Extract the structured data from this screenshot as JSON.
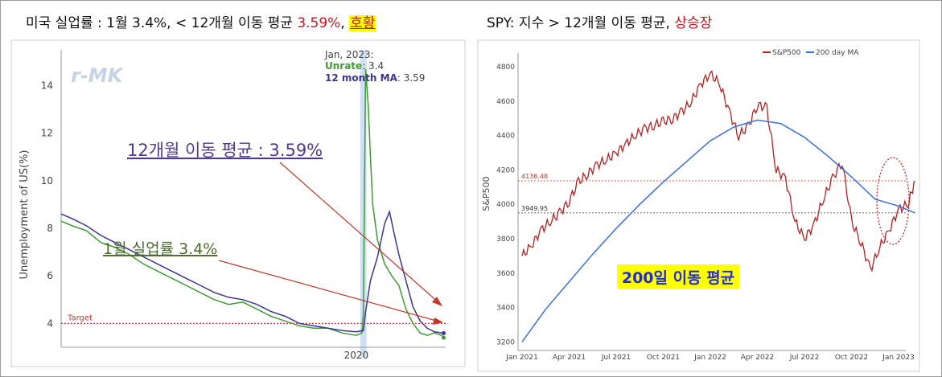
{
  "left": {
    "title": {
      "main": "미국 실업률 : 1월 3.4%, < 12개월 이동 평균 ",
      "value": "3.59%",
      "sep": ", ",
      "highlight": "호황"
    },
    "watermark": "r-MK",
    "tooltip": {
      "date": "Jan, 2023:",
      "unrate_label": "Unrate",
      "unrate_value": ": 3.4",
      "ma_label": "12 month MA",
      "ma_value": ": 3.59"
    },
    "annotation_ma": "12개월 이동 평균 : 3.59%",
    "annotation_unrate": "1월 실업률 3.4%",
    "target_label": "Target",
    "colors": {
      "unrate": "#3f9b35",
      "ma": "#3c3590",
      "target": "#e03030",
      "highlight_band": "#cfe0f4"
    },
    "chart_data": {
      "type": "line",
      "title": "",
      "xlabel": "",
      "ylabel": "Unemployment of US(%)",
      "xlim": [
        2009.6,
        2023.15
      ],
      "ylim": [
        3.0,
        15.5
      ],
      "yticks": [
        4,
        6,
        8,
        10,
        12,
        14
      ],
      "xticks": [
        {
          "value": 2020,
          "label": "2020"
        }
      ],
      "target": 4.0,
      "highlight": 2020.25,
      "series": [
        {
          "name": "Unrate",
          "points": [
            [
              2009.6,
              8.3
            ],
            [
              2010.0,
              8.1
            ],
            [
              2010.5,
              7.9
            ],
            [
              2011.0,
              7.4
            ],
            [
              2011.5,
              7.2
            ],
            [
              2012.0,
              6.9
            ],
            [
              2012.5,
              6.5
            ],
            [
              2013.0,
              6.2
            ],
            [
              2013.5,
              5.9
            ],
            [
              2014.0,
              5.6
            ],
            [
              2014.5,
              5.3
            ],
            [
              2015.0,
              5.0
            ],
            [
              2015.5,
              4.8
            ],
            [
              2016.0,
              4.9
            ],
            [
              2016.5,
              4.6
            ],
            [
              2017.0,
              4.3
            ],
            [
              2017.5,
              4.1
            ],
            [
              2018.0,
              3.9
            ],
            [
              2018.5,
              3.8
            ],
            [
              2019.0,
              3.8
            ],
            [
              2019.5,
              3.6
            ],
            [
              2020.0,
              3.5
            ],
            [
              2020.2,
              3.6
            ],
            [
              2020.25,
              4.4
            ],
            [
              2020.33,
              14.7
            ],
            [
              2020.42,
              13.2
            ],
            [
              2020.5,
              11.0
            ],
            [
              2020.58,
              9.0
            ],
            [
              2020.75,
              7.5
            ],
            [
              2021.0,
              6.5
            ],
            [
              2021.25,
              6.0
            ],
            [
              2021.5,
              5.6
            ],
            [
              2021.75,
              4.6
            ],
            [
              2022.0,
              4.0
            ],
            [
              2022.25,
              3.6
            ],
            [
              2022.5,
              3.5
            ],
            [
              2022.75,
              3.6
            ],
            [
              2023.0,
              3.5
            ],
            [
              2023.08,
              3.4
            ]
          ]
        },
        {
          "name": "12 month MA",
          "points": [
            [
              2009.6,
              8.6
            ],
            [
              2010.0,
              8.4
            ],
            [
              2010.5,
              8.1
            ],
            [
              2011.0,
              7.7
            ],
            [
              2011.5,
              7.4
            ],
            [
              2012.0,
              7.1
            ],
            [
              2012.5,
              6.8
            ],
            [
              2013.0,
              6.5
            ],
            [
              2013.5,
              6.2
            ],
            [
              2014.0,
              5.9
            ],
            [
              2014.5,
              5.6
            ],
            [
              2015.0,
              5.3
            ],
            [
              2015.5,
              5.1
            ],
            [
              2016.0,
              5.0
            ],
            [
              2016.5,
              4.8
            ],
            [
              2017.0,
              4.5
            ],
            [
              2017.5,
              4.3
            ],
            [
              2018.0,
              4.0
            ],
            [
              2018.5,
              3.9
            ],
            [
              2019.0,
              3.8
            ],
            [
              2019.5,
              3.7
            ],
            [
              2020.0,
              3.65
            ],
            [
              2020.25,
              3.7
            ],
            [
              2020.33,
              4.5
            ],
            [
              2020.5,
              5.8
            ],
            [
              2020.75,
              6.8
            ],
            [
              2021.0,
              8.2
            ],
            [
              2021.17,
              8.7
            ],
            [
              2021.33,
              7.8
            ],
            [
              2021.5,
              6.9
            ],
            [
              2021.75,
              5.8
            ],
            [
              2022.0,
              4.7
            ],
            [
              2022.25,
              4.1
            ],
            [
              2022.5,
              3.8
            ],
            [
              2022.75,
              3.65
            ],
            [
              2023.08,
              3.59
            ]
          ]
        }
      ]
    }
  },
  "right": {
    "title": {
      "main": "SPY: 지수 > 12개월 이동 평균, ",
      "highlight": "상승장"
    },
    "legend": {
      "sp500": "S&P500",
      "ma200": "200 day MA"
    },
    "ylabel": "S&P500",
    "ref_levels": [
      {
        "value": 4136.48,
        "label": "4136.48",
        "color": "#c0392b"
      },
      {
        "value": 3949.95,
        "label": "3949.95",
        "color": "#333333"
      }
    ],
    "annotation": "200일 이동 평균",
    "colors": {
      "sp500": "#b22222",
      "ma": "#3b6fe0",
      "ellipse": "#c62828"
    },
    "chart_data": {
      "type": "line",
      "title": "",
      "xlabel": "",
      "ylabel": "S&P500",
      "ylim": [
        3150,
        4880
      ],
      "yticks": [
        3200,
        3400,
        3600,
        3800,
        4000,
        4200,
        4400,
        4600,
        4800
      ],
      "xticks": [
        "Jan 2021",
        "Apr 2021",
        "Jul 2021",
        "Oct 2021",
        "Jan 2022",
        "Apr 2022",
        "Jul 2022",
        "Oct 2022",
        "Jan 2023"
      ],
      "series": [
        {
          "name": "S&P500",
          "x": [
            0,
            0.2,
            0.4,
            0.6,
            0.8,
            1.0,
            1.2,
            1.4,
            1.6,
            1.8,
            2.0,
            2.2,
            2.4,
            2.6,
            2.8,
            3.0,
            3.2,
            3.4,
            3.6,
            3.8,
            4.0,
            4.2,
            4.4,
            4.6,
            4.8,
            5.0,
            5.2,
            5.4,
            5.6,
            5.8,
            6.0,
            6.2,
            6.4,
            6.6,
            6.8,
            7.0,
            7.2,
            7.4,
            7.6,
            7.8,
            8.0,
            8.2,
            8.35
          ],
          "values": [
            3700,
            3760,
            3850,
            3900,
            3950,
            4020,
            4130,
            4180,
            4230,
            4260,
            4300,
            4350,
            4400,
            4440,
            4460,
            4480,
            4500,
            4540,
            4600,
            4700,
            4760,
            4700,
            4540,
            4400,
            4450,
            4580,
            4560,
            4200,
            4150,
            3900,
            3800,
            3880,
            4030,
            4150,
            4250,
            3900,
            3780,
            3620,
            3750,
            3850,
            3970,
            4000,
            4136.48
          ]
        },
        {
          "name": "200 day MA",
          "x": [
            0,
            0.5,
            1.0,
            1.5,
            2.0,
            2.5,
            3.0,
            3.5,
            4.0,
            4.5,
            5.0,
            5.5,
            6.0,
            6.5,
            7.0,
            7.5,
            8.0,
            8.35
          ],
          "values": [
            3200,
            3390,
            3550,
            3710,
            3860,
            4000,
            4130,
            4250,
            4370,
            4450,
            4490,
            4470,
            4390,
            4280,
            4160,
            4030,
            3990,
            3949.95
          ]
        }
      ]
    }
  }
}
